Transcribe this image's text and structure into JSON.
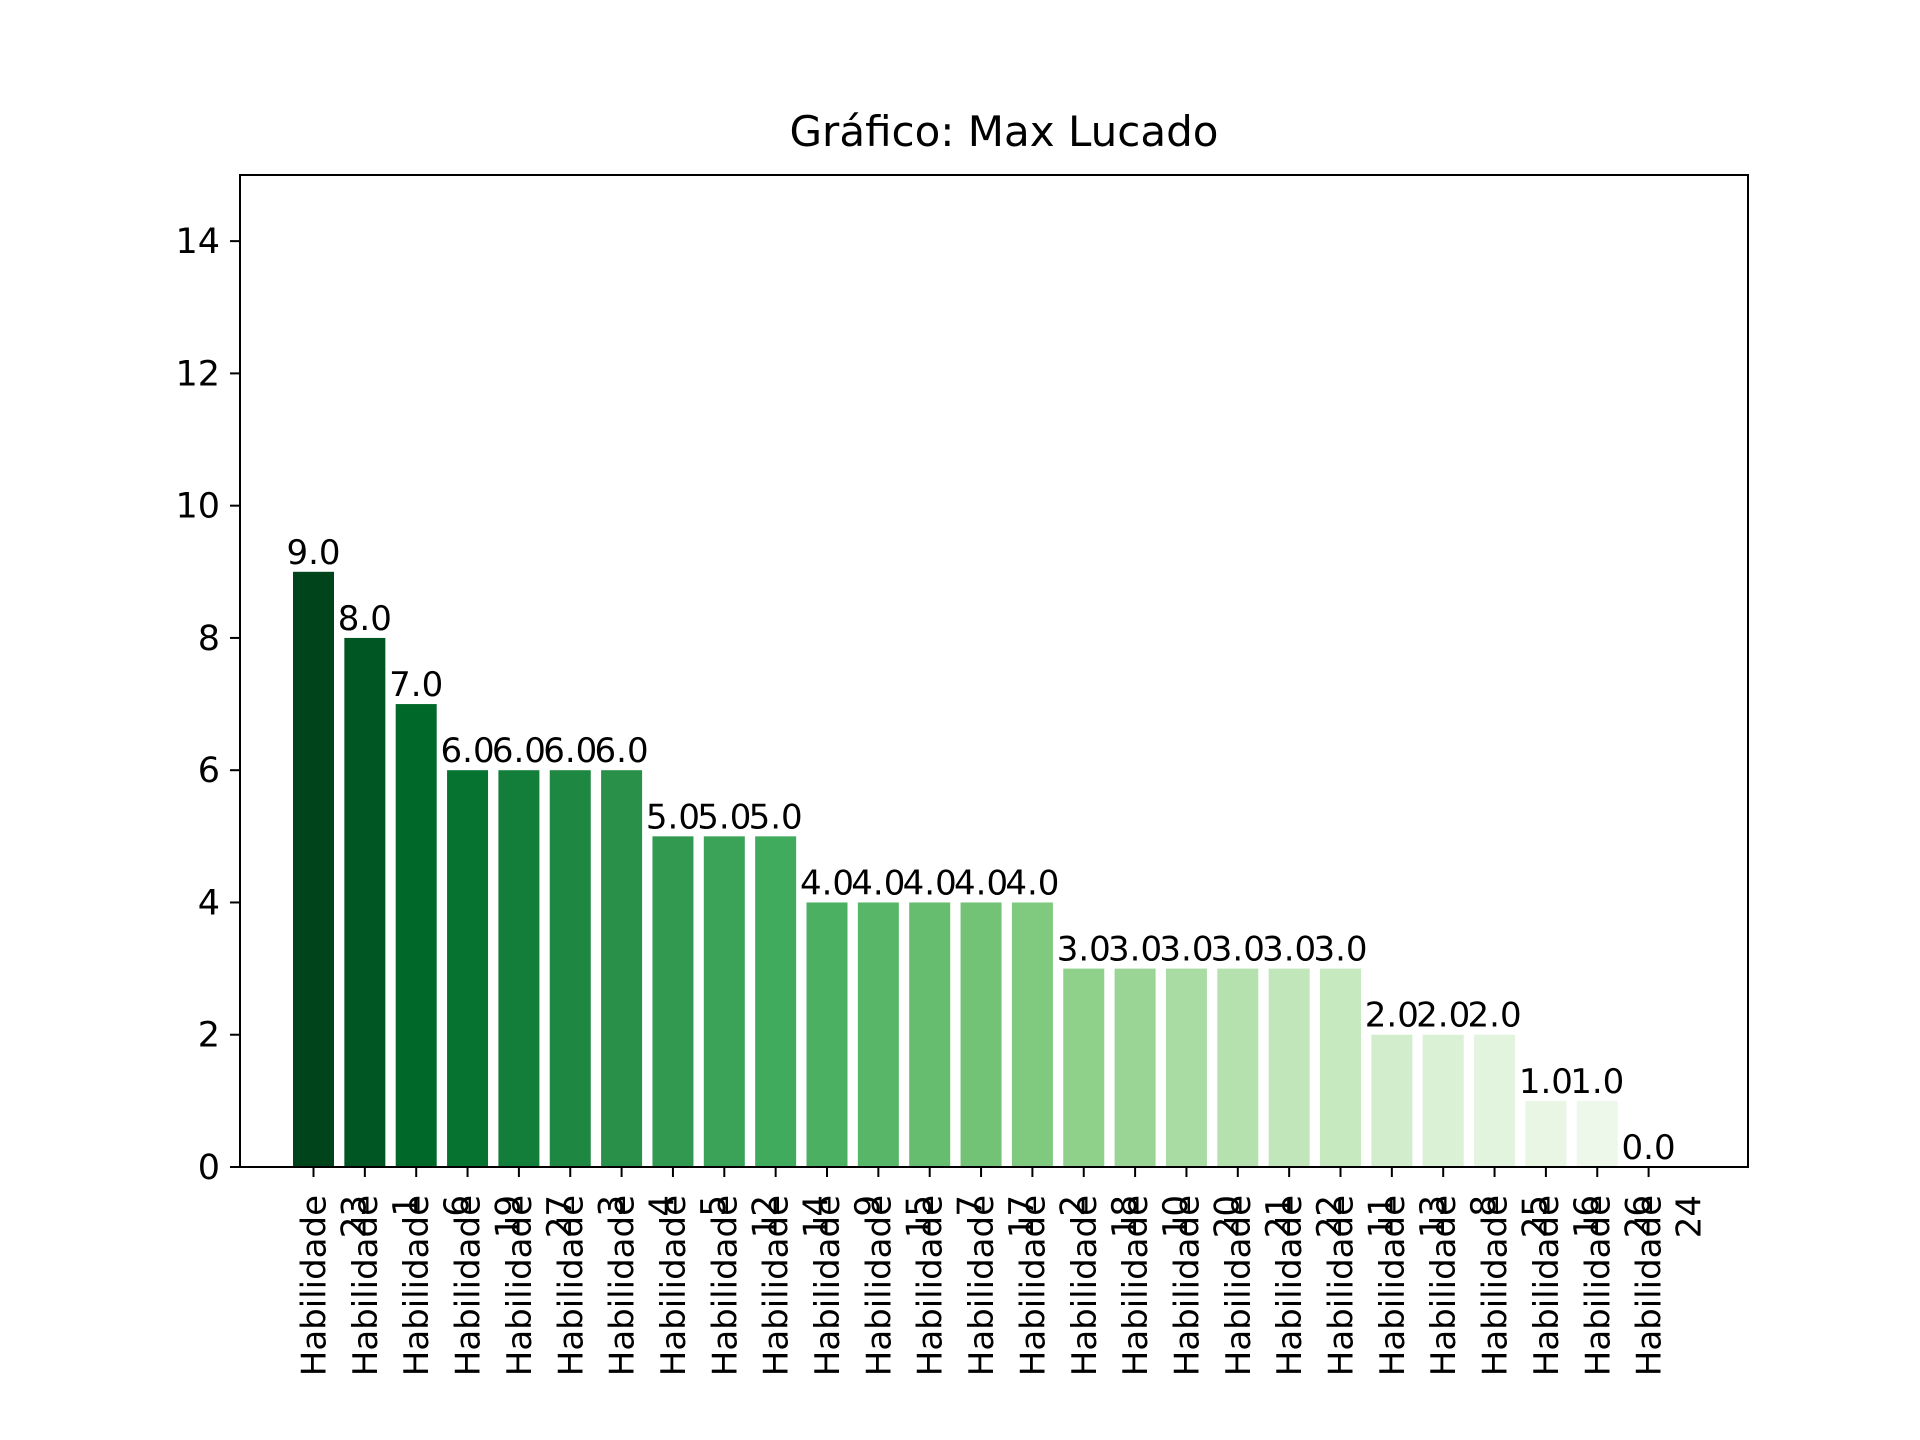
{
  "chart_data": {
    "type": "bar",
    "title": "Gráfico: Max Lucado",
    "xlabel": "",
    "ylabel": "",
    "ylim": [
      0,
      15
    ],
    "yticks": [
      0,
      2,
      4,
      6,
      8,
      10,
      12,
      14
    ],
    "grid": false,
    "categories": [
      "Habilidade 23",
      "Habilidade 1",
      "Habilidade 6",
      "Habilidade 19",
      "Habilidade 27",
      "Habilidade 3",
      "Habilidade 4",
      "Habilidade 5",
      "Habilidade 12",
      "Habilidade 14",
      "Habilidade 9",
      "Habilidade 15",
      "Habilidade 7",
      "Habilidade 17",
      "Habilidade 2",
      "Habilidade 18",
      "Habilidade 10",
      "Habilidade 20",
      "Habilidade 21",
      "Habilidade 22",
      "Habilidade 11",
      "Habilidade 13",
      "Habilidade 8",
      "Habilidade 25",
      "Habilidade 16",
      "Habilidade 26",
      "Habilidade 24"
    ],
    "values": [
      9,
      8,
      7,
      6,
      6,
      6,
      6,
      5,
      5,
      5,
      4,
      4,
      4,
      4,
      4,
      3,
      3,
      3,
      3,
      3,
      3,
      2,
      2,
      2,
      1,
      1,
      0
    ],
    "value_labels": [
      "9.0",
      "8.0",
      "7.0",
      "6.0",
      "6.0",
      "6.0",
      "6.0",
      "5.0",
      "5.0",
      "5.0",
      "4.0",
      "4.0",
      "4.0",
      "4.0",
      "4.0",
      "3.0",
      "3.0",
      "3.0",
      "3.0",
      "3.0",
      "3.0",
      "2.0",
      "2.0",
      "2.0",
      "1.0",
      "1.0",
      "0.0"
    ],
    "colors": [
      "#00441b",
      "#005623",
      "#00692a",
      "#077331",
      "#137e3a",
      "#1e8741",
      "#289049",
      "#319a50",
      "#3aa357",
      "#41ab5d",
      "#4bb062",
      "#58b668",
      "#66bd6f",
      "#72c375",
      "#80ca80",
      "#8fd08a",
      "#9bd595",
      "#a9dca3",
      "#b5e1ae",
      "#c1e6ba",
      "#c7e9c0",
      "#d2edcc",
      "#dbf1d6",
      "#e3f4de",
      "#e8f6e3",
      "#eef8ea",
      "#f7fcf5"
    ]
  }
}
